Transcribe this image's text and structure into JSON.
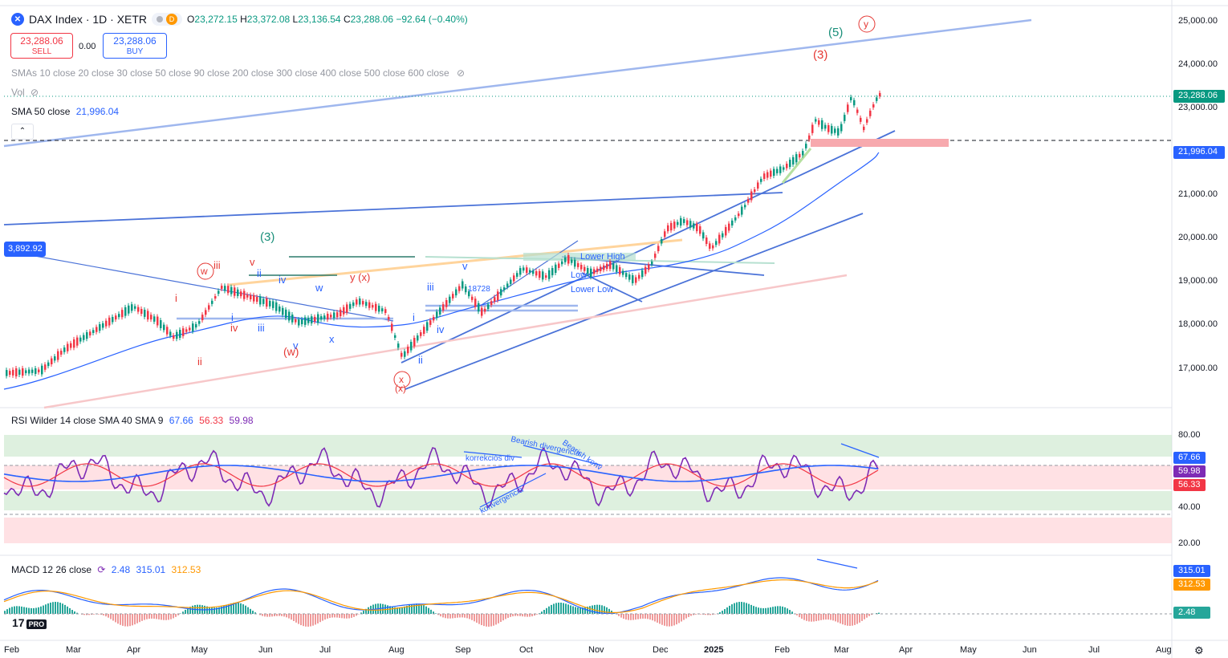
{
  "header": {
    "symbol_icon": "x-icon",
    "symbol_title": "DAX Index · 1D · XETR",
    "badge_d": "D",
    "ohlc": {
      "o_label": "O",
      "o": "23,272.15",
      "h_label": "H",
      "h": "23,372.08",
      "l_label": "L",
      "l": "23,136.54",
      "c_label": "C",
      "c": "23,288.06",
      "change": "−92.64 (−0.40%)"
    }
  },
  "trade": {
    "sell_price": "23,288.06",
    "sell_label": "SELL",
    "spread": "0.00",
    "buy_price": "23,288.06",
    "buy_label": "BUY"
  },
  "indicators": {
    "smas_label": "SMAs 10 close 20 close 30 close 50 close 90 close 200 close 300 close 400 close 500 close 600 close",
    "vol_label": "Vol",
    "sma50_label": "SMA 50 close",
    "sma50_value": "21,996.04",
    "rsi_label": "RSI Wilder 14 close SMA 40 SMA 9",
    "rsi_v1": "67.66",
    "rsi_v2": "56.33",
    "rsi_v3": "59.98",
    "macd_label": "MACD 12 26 close",
    "macd_v1": "2.48",
    "macd_v2": "315.01",
    "macd_v3": "312.53"
  },
  "price_axis": {
    "ticks": [
      "25,000.00",
      "24,000.00",
      "23,000.00",
      "21,000.00",
      "20,000.00",
      "19,000.00",
      "18,000.00",
      "17,000.00"
    ],
    "current_price": "23,288.06",
    "sma_tag": "21,996.04",
    "left_tag": "3,892.92"
  },
  "rsi_axis": {
    "ticks": [
      "80.00",
      "40.00",
      "20.00"
    ],
    "tags": [
      "67.66",
      "59.98",
      "56.33"
    ]
  },
  "macd_axis": {
    "tags": [
      "315.01",
      "312.53",
      "2.48"
    ]
  },
  "time_axis": {
    "labels": [
      "Feb",
      "Mar",
      "Apr",
      "May",
      "Jun",
      "Jul",
      "Aug",
      "Sep",
      "Oct",
      "Nov",
      "Dec",
      "2025",
      "Feb",
      "Mar",
      "Apr",
      "May",
      "Jun",
      "Jul",
      "Aug"
    ]
  },
  "annotations": {
    "wave_5": "(5)",
    "wave_3_red": "(3)",
    "wave_y_circle": "y",
    "wave_3_green": "(3)",
    "wave_w_circle": "w",
    "wave_iii_red": "iii",
    "wave_v_red": "v",
    "wave_i_red": "i",
    "wave_ii_red": "ii",
    "wave_ii_blue": "ii",
    "wave_iv_blue": "iv",
    "wave_w_blue": "w",
    "wave_y_x": "y (x)",
    "wave_i_blue": "i",
    "wave_iv_red": "iv",
    "wave_iii_blue": "iii",
    "wave_v_blue": "v",
    "wave_w_red": "(w)",
    "wave_x_blue": "x",
    "wave_x_circle": "x",
    "wave_x_paren": "(x)",
    "wave_iii_blue2": "iii",
    "wave_v_blue2": "v",
    "wave_i_blue2": "i",
    "wave_iv_blue2": "iv",
    "wave_ii_blue2": "ii",
    "label_18728": "18728",
    "label_lower_high": "Lower High",
    "label_low": "Low",
    "label_lower_low": "Lower Low",
    "rsi_bearish_div": "Bearish divergencia",
    "rsi_bearish_konv": "Bearish konv",
    "rsi_korrekcios": "korrekciós div",
    "rsi_konvergencia": "konvergencia"
  },
  "branding": {
    "logo": "17",
    "pro": "PRO"
  },
  "colors": {
    "bull": "#089981",
    "bear": "#f23645",
    "accent": "#2962ff",
    "rsi": "#7e2bb5",
    "sma": "#2962ff"
  }
}
